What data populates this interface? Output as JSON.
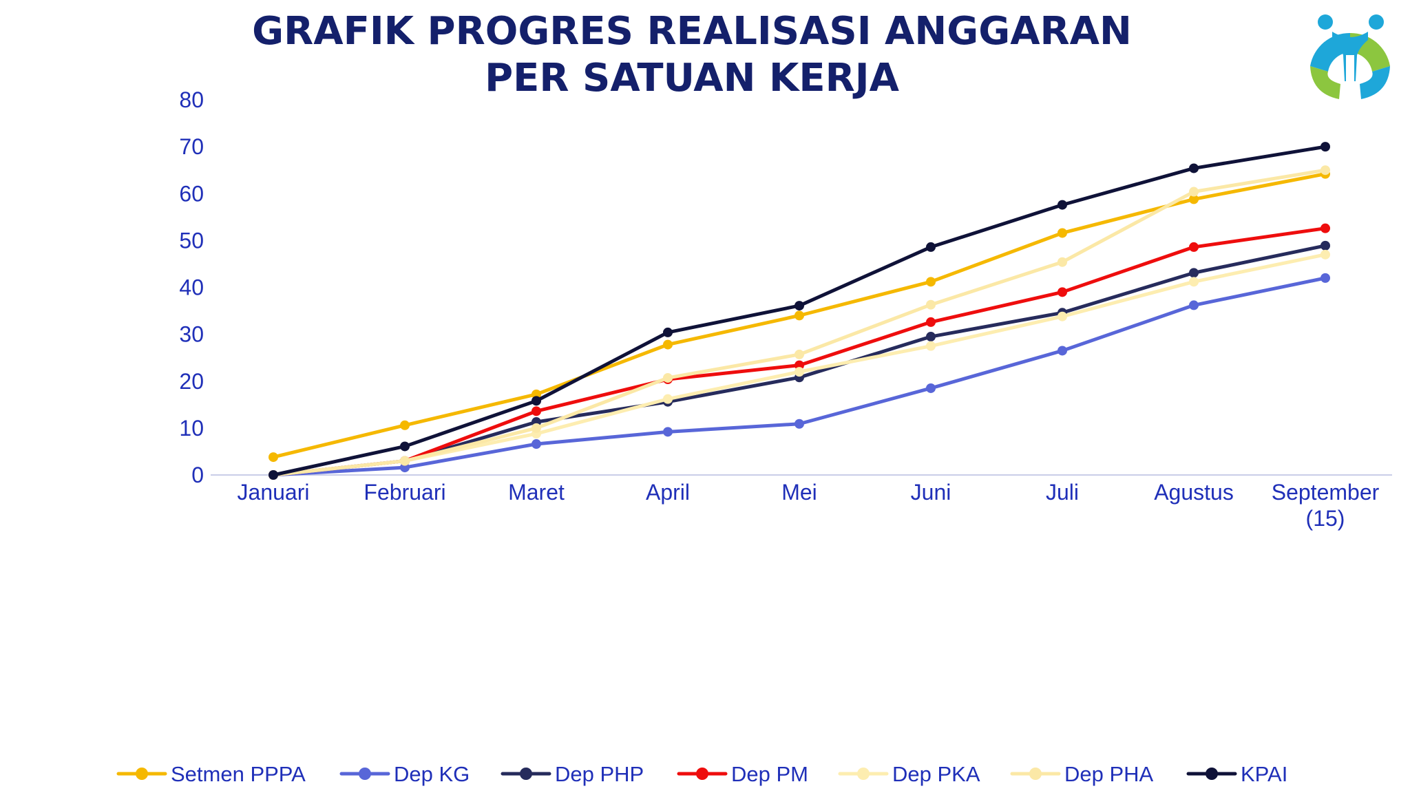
{
  "title": {
    "line1": "GRAFIK PROGRES REALISASI ANGGARAN",
    "line2": "PER SATUAN KERJA"
  },
  "logo": {
    "icon": "family-logo-icon",
    "colors": [
      "#1ea7d9",
      "#8cc63f"
    ]
  },
  "chart_data": {
    "type": "line",
    "categories": [
      "Januari",
      "Februari",
      "Maret",
      "April",
      "Mei",
      "Juni",
      "Juli",
      "Agustus",
      [
        "September",
        "(15)"
      ]
    ],
    "ylim": [
      0,
      80
    ],
    "yticks": [
      0,
      10,
      20,
      30,
      40,
      50,
      60,
      70,
      80
    ],
    "grid": false,
    "legend_position": "bottom",
    "series": [
      {
        "name": "Setmen PPPA",
        "color": "#f5b800",
        "values": [
          3.8,
          10.6,
          17.2,
          27.8,
          34.0,
          41.2,
          51.6,
          58.8,
          64.2
        ]
      },
      {
        "name": "Dep KG",
        "color": "#5866d8",
        "values": [
          0,
          1.6,
          6.6,
          9.2,
          10.9,
          18.5,
          26.5,
          36.2,
          42.0
        ]
      },
      {
        "name": "Dep PHP",
        "color": "#262b5c",
        "values": [
          0,
          3.0,
          11.3,
          15.6,
          20.8,
          29.5,
          34.6,
          43.1,
          48.9
        ]
      },
      {
        "name": "Dep PM",
        "color": "#ee0d0d",
        "values": [
          0,
          3.0,
          13.6,
          20.4,
          23.4,
          32.6,
          39.0,
          48.6,
          52.6
        ]
      },
      {
        "name": "Dep PKA",
        "color": "#fdedb0",
        "values": [
          0,
          3.0,
          8.8,
          16.2,
          22.0,
          27.5,
          33.8,
          41.2,
          47.0
        ]
      },
      {
        "name": "Dep PHA",
        "color": "#fbe8a6",
        "values": [
          0,
          3.0,
          10.0,
          20.7,
          25.7,
          36.3,
          45.4,
          60.4,
          65.0
        ]
      },
      {
        "name": "KPAI",
        "color": "#0f1238",
        "values": [
          0,
          6.1,
          15.8,
          30.4,
          36.1,
          48.6,
          57.6,
          65.4,
          70.0
        ]
      }
    ]
  }
}
